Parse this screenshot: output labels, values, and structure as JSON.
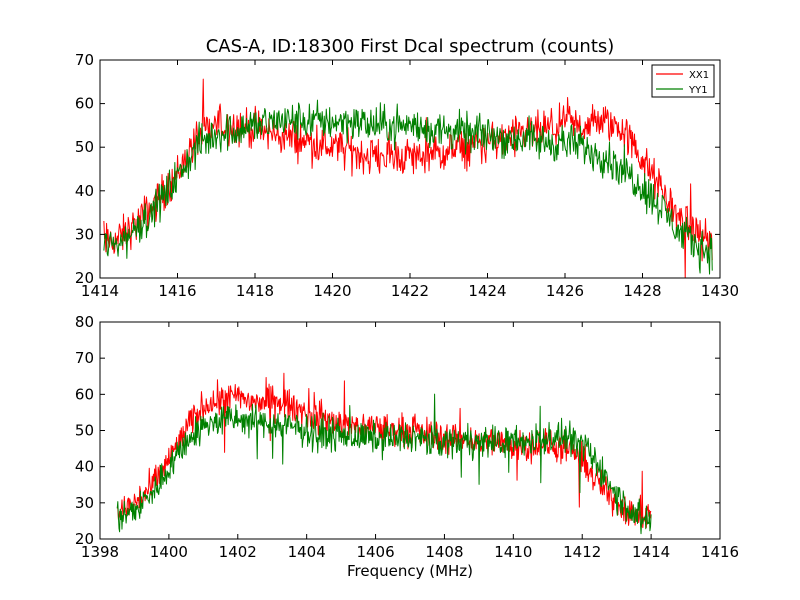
{
  "chart_data": [
    {
      "type": "line",
      "title": "CAS-A, ID:18300 First Dcal spectrum (counts)",
      "xlabel": "",
      "ylabel": "",
      "xlim": [
        1414,
        1430
      ],
      "ylim": [
        20,
        70
      ],
      "xticks": [
        1414,
        1416,
        1418,
        1420,
        1422,
        1424,
        1426,
        1428,
        1430
      ],
      "yticks": [
        20,
        30,
        40,
        50,
        60,
        70
      ],
      "legend": "top-right",
      "grid": false,
      "series": [
        {
          "name": "XX1",
          "color": "#ff0000",
          "x": [
            1414.1,
            1414.5,
            1415.0,
            1415.5,
            1416.0,
            1416.5,
            1417.0,
            1417.5,
            1418.0,
            1418.5,
            1419.0,
            1419.5,
            1420.0,
            1420.5,
            1421.0,
            1421.5,
            1422.0,
            1422.5,
            1423.0,
            1423.5,
            1424.0,
            1424.5,
            1425.0,
            1425.5,
            1426.0,
            1426.5,
            1427.0,
            1427.5,
            1428.0,
            1428.5,
            1429.0,
            1429.5,
            1429.8
          ],
          "values": [
            28,
            29,
            33,
            38,
            44,
            52,
            55,
            55,
            54,
            53,
            52,
            51,
            50,
            49,
            48,
            48,
            48,
            48,
            49,
            50,
            51,
            52,
            53,
            54,
            55,
            55,
            56,
            54,
            47,
            40,
            33,
            30,
            28
          ],
          "noise": 5
        },
        {
          "name": "YY1",
          "color": "#008000",
          "x": [
            1414.1,
            1414.5,
            1415.0,
            1415.5,
            1416.0,
            1416.5,
            1417.0,
            1417.5,
            1418.0,
            1418.5,
            1419.0,
            1419.5,
            1420.0,
            1420.5,
            1421.0,
            1421.5,
            1422.0,
            1422.5,
            1423.0,
            1423.5,
            1424.0,
            1424.5,
            1425.0,
            1425.5,
            1426.0,
            1426.5,
            1427.0,
            1427.5,
            1428.0,
            1428.5,
            1429.0,
            1429.5,
            1429.8
          ],
          "values": [
            27,
            28,
            32,
            37,
            43,
            50,
            53,
            54,
            55,
            56,
            56,
            56,
            56,
            56,
            55,
            55,
            55,
            54,
            54,
            53,
            53,
            52,
            52,
            51,
            51,
            50,
            48,
            45,
            41,
            36,
            30,
            27,
            26
          ],
          "noise": 5
        }
      ]
    },
    {
      "type": "line",
      "title": "",
      "xlabel": "Frequency (MHz)",
      "ylabel": "",
      "xlim": [
        1398,
        1416
      ],
      "ylim": [
        20,
        80
      ],
      "xticks": [
        1398,
        1400,
        1402,
        1404,
        1406,
        1408,
        1410,
        1412,
        1414,
        1416
      ],
      "yticks": [
        20,
        30,
        40,
        50,
        60,
        70,
        80
      ],
      "legend": "none",
      "grid": false,
      "series": [
        {
          "color": "#ff0000",
          "x": [
            1398.5,
            1399.0,
            1399.5,
            1400.0,
            1400.5,
            1401.0,
            1401.5,
            1402.0,
            1402.5,
            1403.0,
            1403.5,
            1404.0,
            1404.5,
            1405.0,
            1405.5,
            1406.0,
            1406.5,
            1407.0,
            1407.5,
            1408.0,
            1408.5,
            1409.0,
            1409.5,
            1410.0,
            1410.5,
            1411.0,
            1411.5,
            1412.0,
            1412.5,
            1413.0,
            1413.5,
            1414.0
          ],
          "values": [
            27,
            30,
            34,
            42,
            50,
            57,
            59,
            59,
            58,
            58,
            57,
            55,
            53,
            52,
            51,
            51,
            50,
            50,
            49,
            48,
            48,
            47,
            47,
            46,
            46,
            46,
            45,
            42,
            35,
            30,
            27,
            27
          ],
          "noise": 5
        },
        {
          "color": "#008000",
          "x": [
            1398.5,
            1399.0,
            1399.5,
            1400.0,
            1400.5,
            1401.0,
            1401.5,
            1402.0,
            1402.5,
            1403.0,
            1403.5,
            1404.0,
            1404.5,
            1405.0,
            1405.5,
            1406.0,
            1406.5,
            1407.0,
            1407.5,
            1408.0,
            1408.5,
            1409.0,
            1409.5,
            1410.0,
            1410.5,
            1411.0,
            1411.5,
            1412.0,
            1412.5,
            1413.0,
            1413.5,
            1414.0
          ],
          "values": [
            26,
            28,
            32,
            40,
            47,
            51,
            53,
            53,
            52,
            52,
            51,
            50,
            49,
            49,
            48,
            48,
            48,
            48,
            47,
            47,
            47,
            47,
            47,
            47,
            47,
            48,
            48,
            46,
            40,
            32,
            27,
            25
          ],
          "noise": 5
        }
      ]
    }
  ]
}
